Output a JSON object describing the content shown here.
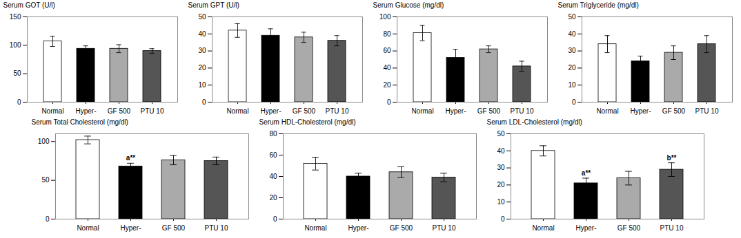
{
  "chart_data": [
    {
      "type": "bar",
      "ylabel": "Serum GOT (U/l)",
      "categories": [
        "Normal",
        "Hyper-",
        "GF 500",
        "PTU 10"
      ],
      "values": [
        107,
        94,
        94,
        90
      ],
      "errors": [
        9,
        5,
        7,
        4
      ],
      "colors": [
        "white",
        "black",
        "#aaaaaa",
        "#555555"
      ],
      "ylim": [
        0,
        150
      ],
      "yticks": [
        0,
        50,
        100,
        150
      ]
    },
    {
      "type": "bar",
      "ylabel": "Serum GPT (U/l)",
      "categories": [
        "Normal",
        "Hyper-",
        "GF 500",
        "PTU 10"
      ],
      "values": [
        42,
        39,
        38,
        36
      ],
      "errors": [
        4,
        4,
        3,
        3
      ],
      "colors": [
        "white",
        "black",
        "#aaaaaa",
        "#555555"
      ],
      "ylim": [
        0,
        50
      ],
      "yticks": [
        0,
        10,
        20,
        30,
        40,
        50
      ]
    },
    {
      "type": "bar",
      "ylabel": "Serum Glucose (mg/dl)",
      "categories": [
        "Normal",
        "Hyper-",
        "GF 500",
        "PTU 10"
      ],
      "values": [
        81,
        52,
        62,
        42
      ],
      "errors": [
        9,
        10,
        4,
        6
      ],
      "colors": [
        "white",
        "black",
        "#aaaaaa",
        "#555555"
      ],
      "ylim": [
        0,
        100
      ],
      "yticks": [
        0,
        20,
        40,
        60,
        80,
        100
      ]
    },
    {
      "type": "bar",
      "ylabel": "Serum Triglyceride (mg/dl)",
      "categories": [
        "Normal",
        "Hyper-",
        "GF 500",
        "PTU 10"
      ],
      "values": [
        34,
        24,
        29,
        34
      ],
      "errors": [
        5,
        3,
        4,
        5
      ],
      "colors": [
        "white",
        "black",
        "#aaaaaa",
        "#555555"
      ],
      "ylim": [
        0,
        50
      ],
      "yticks": [
        0,
        10,
        20,
        30,
        40,
        50
      ]
    },
    {
      "type": "bar",
      "ylabel": "Serum Total Cholesterol (mg/dl)",
      "categories": [
        "Normal",
        "Hyper-",
        "GF 500",
        "PTU 10"
      ],
      "values": [
        102,
        68,
        76,
        75
      ],
      "errors": [
        5,
        4,
        6,
        5
      ],
      "annotations": [
        null,
        "a**",
        null,
        null
      ],
      "colors": [
        "white",
        "black",
        "#aaaaaa",
        "#555555"
      ],
      "ylim": [
        0,
        110
      ],
      "yticks": [
        0,
        50,
        100
      ]
    },
    {
      "type": "bar",
      "ylabel": "Serum HDL-Cholesterol (mg/dl)",
      "categories": [
        "Normal",
        "Hyper-",
        "GF 500",
        "PTU 10"
      ],
      "values": [
        52,
        40,
        44,
        39
      ],
      "errors": [
        6,
        3,
        5,
        4
      ],
      "colors": [
        "white",
        "black",
        "#aaaaaa",
        "#555555"
      ],
      "ylim": [
        0,
        80
      ],
      "yticks": [
        0,
        20,
        40,
        60,
        80
      ]
    },
    {
      "type": "bar",
      "ylabel": "Serum LDL-Cholesterol (mg/dl)",
      "categories": [
        "Normal",
        "Hyper-",
        "GF 500",
        "PTU 10"
      ],
      "values": [
        40,
        21,
        24,
        29
      ],
      "errors": [
        3,
        3,
        4,
        4
      ],
      "annotations": [
        null,
        "a**",
        null,
        "b**"
      ],
      "colors": [
        "white",
        "black",
        "#aaaaaa",
        "#555555"
      ],
      "ylim": [
        0,
        50
      ],
      "yticks": [
        0,
        10,
        20,
        30,
        40,
        50
      ]
    }
  ]
}
